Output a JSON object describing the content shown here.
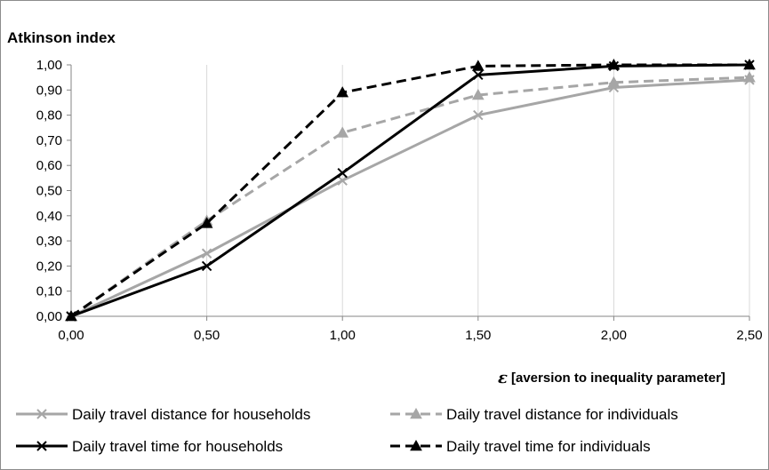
{
  "chart_data": {
    "type": "line",
    "ylabel": "Atkinson index",
    "xlabel_symbol": "ε",
    "xlabel": "[aversion to inequality parameter]",
    "x": [
      0.0,
      0.5,
      1.0,
      1.5,
      2.0,
      2.5
    ],
    "x_tick_labels": [
      "0,00",
      "0,50",
      "1,00",
      "1,50",
      "2,00",
      "2,50"
    ],
    "y_tick_values": [
      0,
      0.1,
      0.2,
      0.3,
      0.4,
      0.5,
      0.6,
      0.7,
      0.8,
      0.9,
      1.0
    ],
    "y_tick_labels": [
      "0,00",
      "0,10",
      "0,20",
      "0,30",
      "0,40",
      "0,50",
      "0,60",
      "0,70",
      "0,80",
      "0,90",
      "1,00"
    ],
    "xlim": [
      0,
      2.5
    ],
    "ylim": [
      0,
      1.0
    ],
    "grid": "vertical",
    "legend_position": "bottom",
    "series": [
      {
        "name": "Daily travel distance for households",
        "values": [
          0.0,
          0.25,
          0.54,
          0.8,
          0.91,
          0.94
        ],
        "color": "#a6a6a6",
        "dash": "solid",
        "marker": "x"
      },
      {
        "name": "Daily travel distance for individuals",
        "values": [
          0.0,
          0.38,
          0.73,
          0.88,
          0.93,
          0.95
        ],
        "color": "#a6a6a6",
        "dash": "dashed",
        "marker": "triangle"
      },
      {
        "name": "Daily travel time for households",
        "values": [
          0.0,
          0.2,
          0.57,
          0.96,
          0.995,
          1.0
        ],
        "color": "#000000",
        "dash": "solid",
        "marker": "x"
      },
      {
        "name": "Daily travel time for individuals",
        "values": [
          0.0,
          0.37,
          0.89,
          0.995,
          1.0,
          1.0
        ],
        "color": "#000000",
        "dash": "dashed",
        "marker": "triangle"
      }
    ]
  }
}
